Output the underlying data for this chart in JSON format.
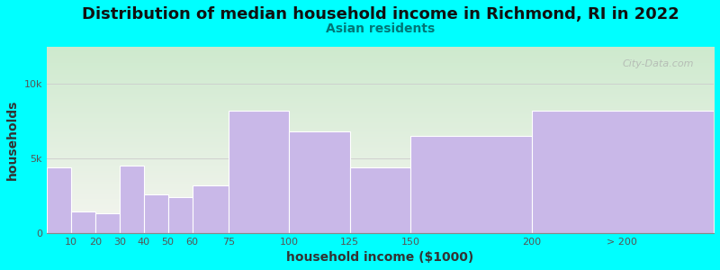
{
  "title": "Distribution of median household income in Richmond, RI in 2022",
  "subtitle": "Asian residents",
  "xlabel": "household income ($1000)",
  "ylabel": "households",
  "background_color": "#00FFFF",
  "bar_color": "#c9b8e8",
  "bar_edgecolor": "#ffffff",
  "categories": [
    "10",
    "20",
    "30",
    "40",
    "50",
    "60",
    "75",
    "100",
    "125",
    "150",
    "200",
    "> 200"
  ],
  "left_edges": [
    0,
    10,
    20,
    30,
    40,
    50,
    60,
    75,
    100,
    125,
    150,
    200
  ],
  "widths": [
    10,
    10,
    10,
    10,
    10,
    10,
    15,
    25,
    25,
    25,
    50,
    75
  ],
  "values": [
    4400,
    1400,
    1300,
    4500,
    2600,
    2400,
    3200,
    8200,
    6800,
    4400,
    6500,
    8200
  ],
  "ylim": [
    0,
    12500
  ],
  "yticks": [
    0,
    5000,
    10000
  ],
  "ytick_labels": [
    "0",
    "5k",
    "10k"
  ],
  "xlim": [
    0,
    275
  ],
  "title_fontsize": 13,
  "subtitle_fontsize": 10,
  "axis_label_fontsize": 10,
  "tick_fontsize": 8,
  "watermark_text": "City-Data.com",
  "gradient_top": "#ceeace",
  "gradient_bottom": "#f5f5f0"
}
